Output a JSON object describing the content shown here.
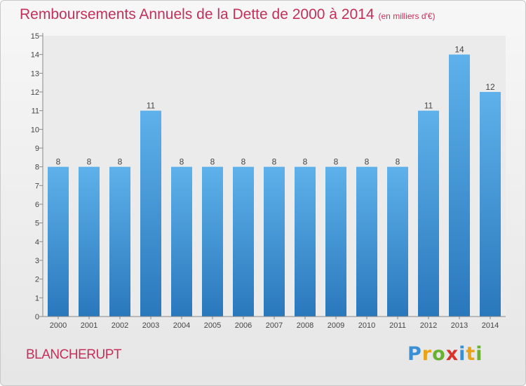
{
  "header": {
    "title": "Remboursements Annuels de la Dette de 2000 à 2014",
    "subtitle": "(en milliers d'€)"
  },
  "footer": {
    "commune": "BLANCHERUPT",
    "brand": "Proxiti"
  },
  "colors": {
    "title": "#c4305a",
    "bar_top": "#5eb1ea",
    "bar_bottom": "#2a78bc"
  },
  "chart_data": {
    "type": "bar",
    "title": "Remboursements Annuels de la Dette de 2000 à 2014",
    "subtitle": "(en milliers d'€)",
    "categories": [
      "2000",
      "2001",
      "2002",
      "2003",
      "2004",
      "2005",
      "2006",
      "2007",
      "2008",
      "2009",
      "2010",
      "2011",
      "2012",
      "2013",
      "2014"
    ],
    "values": [
      8,
      8,
      8,
      11,
      8,
      8,
      8,
      8,
      8,
      8,
      8,
      8,
      11,
      14,
      12
    ],
    "data_labels": [
      "8",
      "8",
      "8",
      "11",
      "8",
      "8",
      "8",
      "8",
      "8",
      "8",
      "8",
      "8",
      "11",
      "14",
      "12"
    ],
    "ylim": [
      0,
      15
    ],
    "yticks": [
      0,
      1,
      2,
      3,
      4,
      5,
      6,
      7,
      8,
      9,
      10,
      11,
      12,
      13,
      14,
      15
    ],
    "grid": false,
    "xlabel": "",
    "ylabel": ""
  }
}
